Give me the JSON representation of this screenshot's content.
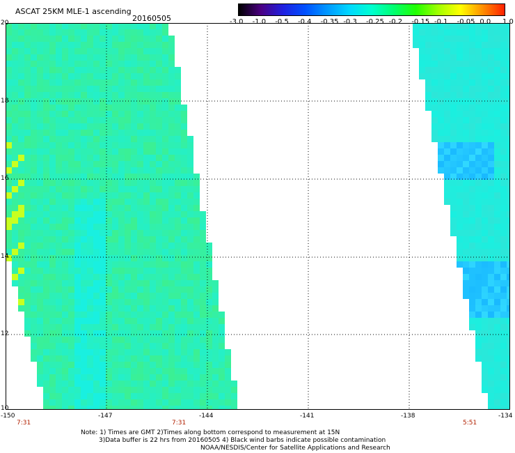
{
  "title": "ASCAT 25KM MLE-1 ascending",
  "date": "20160505",
  "colorbar": {
    "ticks": [
      "-3.0",
      "-1.0",
      "-0.5",
      "-0.4",
      "-0.35",
      "-0.3",
      "-0.25",
      "-0.2",
      "-0.15",
      "-0.1",
      "-0.05",
      "0.0",
      "1.0"
    ],
    "colors": [
      "#000000",
      "#4b0082",
      "#2020e0",
      "#0050ff",
      "#0098ff",
      "#00d8ff",
      "#00ffd0",
      "#00ff70",
      "#20ff00",
      "#a0ff00",
      "#ffff00",
      "#ff9000",
      "#ff2000"
    ]
  },
  "axes": {
    "lon_labels": [
      "-150",
      "-147",
      "-144",
      "-141",
      "-138",
      "-134"
    ],
    "lat_labels": [
      "20",
      "18",
      "16",
      "14",
      "12",
      "10"
    ]
  },
  "pass_times": [
    "7:31",
    "7:31",
    "5:51"
  ],
  "notes": [
    "Note: 1) Times are GMT 2)Times along bottom correspond to measurement at 15N",
    "3)Data buffer is 22 hrs from 20160505 4) Black wind barbs indicate possible contamination",
    "NOAA/NESDIS/Center for Satellite Applications and Research"
  ],
  "colors": {
    "time_label": "#b22000",
    "grid": "#000000",
    "swath_green": "#4ef06a",
    "swath_cyan": "#19f0e0"
  }
}
